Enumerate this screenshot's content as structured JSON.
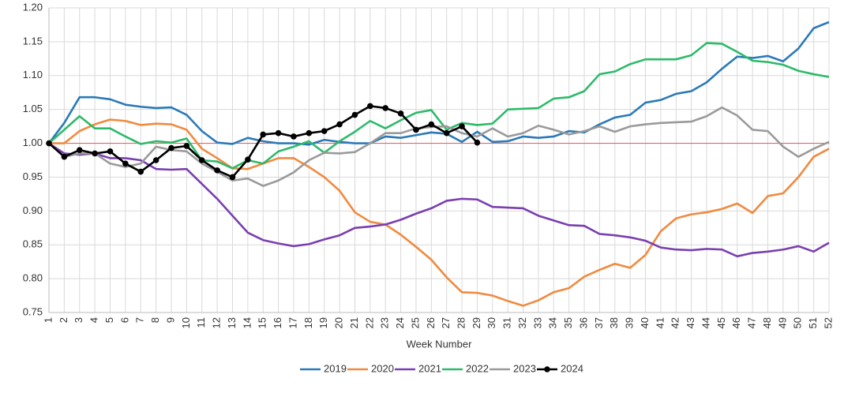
{
  "chart_data": {
    "type": "line",
    "x_label": "Week Number",
    "categories": [
      "1",
      "2",
      "3",
      "4",
      "5",
      "6",
      "7",
      "8",
      "9",
      "10",
      "11",
      "12",
      "13",
      "14",
      "15",
      "16",
      "17",
      "18",
      "19",
      "20",
      "21",
      "22",
      "23",
      "24",
      "25",
      "26",
      "27",
      "28",
      "29",
      "30",
      "31",
      "32",
      "33",
      "34",
      "35",
      "36",
      "37",
      "38",
      "39",
      "40",
      "41",
      "42",
      "43",
      "44",
      "45",
      "46",
      "47",
      "48",
      "49",
      "50",
      "51",
      "52"
    ],
    "ylim": [
      0.75,
      1.2
    ],
    "yticks": [
      {
        "value": 0.75,
        "label": "0.75"
      },
      {
        "value": 0.8,
        "label": "0.80"
      },
      {
        "value": 0.85,
        "label": "0.85"
      },
      {
        "value": 0.9,
        "label": "0.90"
      },
      {
        "value": 0.95,
        "label": "0.95"
      },
      {
        "value": 1.0,
        "label": "1.00"
      },
      {
        "value": 1.05,
        "label": "1.05"
      },
      {
        "value": 1.1,
        "label": "1.10"
      },
      {
        "value": 1.15,
        "label": "1.15"
      },
      {
        "value": 1.2,
        "label": "1.20"
      }
    ],
    "grid": true,
    "reference_line": {
      "value": 1.0,
      "color": "#e06666"
    },
    "legend": "bottom",
    "series": [
      {
        "name": "2019",
        "color": "#2a7ab8",
        "values": [
          1.0,
          1.03,
          1.068,
          1.068,
          1.065,
          1.057,
          1.054,
          1.052,
          1.053,
          1.042,
          1.018,
          1.001,
          0.999,
          1.008,
          1.003,
          1.0,
          1.0,
          0.998,
          1.005,
          1.002,
          1.0,
          1.0,
          1.01,
          1.008,
          1.012,
          1.016,
          1.014,
          1.002,
          1.017,
          1.002,
          1.003,
          1.01,
          1.008,
          1.01,
          1.018,
          1.016,
          1.028,
          1.038,
          1.042,
          1.06,
          1.064,
          1.073,
          1.077,
          1.09,
          1.11,
          1.128,
          1.126,
          1.129,
          1.121,
          1.14,
          1.17,
          1.179
        ]
      },
      {
        "name": "2020",
        "color": "#f08a3e",
        "values": [
          1.0,
          1.0,
          1.018,
          1.028,
          1.035,
          1.033,
          1.027,
          1.029,
          1.028,
          1.02,
          0.992,
          0.978,
          0.963,
          0.962,
          0.97,
          0.978,
          0.978,
          0.965,
          0.95,
          0.93,
          0.898,
          0.884,
          0.88,
          0.865,
          0.847,
          0.828,
          0.802,
          0.78,
          0.779,
          0.775,
          0.767,
          0.76,
          0.768,
          0.78,
          0.786,
          0.803,
          0.813,
          0.822,
          0.816,
          0.835,
          0.87,
          0.889,
          0.895,
          0.898,
          0.903,
          0.911,
          0.897,
          0.922,
          0.926,
          0.95,
          0.98,
          0.992
        ]
      },
      {
        "name": "2021",
        "color": "#7a3fb0",
        "values": [
          1.0,
          0.985,
          0.983,
          0.985,
          0.978,
          0.978,
          0.975,
          0.962,
          0.961,
          0.962,
          0.94,
          0.918,
          0.893,
          0.868,
          0.857,
          0.852,
          0.848,
          0.851,
          0.858,
          0.864,
          0.875,
          0.877,
          0.88,
          0.887,
          0.896,
          0.904,
          0.915,
          0.918,
          0.917,
          0.906,
          0.905,
          0.904,
          0.893,
          0.886,
          0.879,
          0.878,
          0.866,
          0.864,
          0.861,
          0.856,
          0.846,
          0.843,
          0.842,
          0.844,
          0.843,
          0.833,
          0.838,
          0.84,
          0.843,
          0.848,
          0.84,
          0.853
        ]
      },
      {
        "name": "2022",
        "color": "#2dba6a",
        "values": [
          1.0,
          1.02,
          1.04,
          1.022,
          1.022,
          1.01,
          0.999,
          1.003,
          1.001,
          1.007,
          0.975,
          0.973,
          0.963,
          0.975,
          0.97,
          0.988,
          0.995,
          1.003,
          0.986,
          1.003,
          1.017,
          1.033,
          1.022,
          1.034,
          1.045,
          1.049,
          1.02,
          1.03,
          1.027,
          1.029,
          1.05,
          1.051,
          1.052,
          1.066,
          1.068,
          1.077,
          1.102,
          1.106,
          1.117,
          1.124,
          1.124,
          1.124,
          1.13,
          1.148,
          1.147,
          1.135,
          1.122,
          1.12,
          1.116,
          1.107,
          1.102,
          1.098
        ]
      },
      {
        "name": "2023",
        "color": "#9a9a9a",
        "values": [
          1.0,
          0.98,
          0.985,
          0.985,
          0.97,
          0.965,
          0.97,
          0.995,
          0.99,
          0.988,
          0.97,
          0.958,
          0.945,
          0.948,
          0.937,
          0.945,
          0.957,
          0.975,
          0.986,
          0.985,
          0.987,
          1.0,
          1.015,
          1.015,
          1.022,
          1.024,
          1.025,
          1.015,
          1.01,
          1.022,
          1.01,
          1.015,
          1.026,
          1.02,
          1.013,
          1.018,
          1.025,
          1.017,
          1.025,
          1.028,
          1.03,
          1.031,
          1.032,
          1.04,
          1.053,
          1.041,
          1.02,
          1.018,
          0.995,
          0.98,
          0.992,
          1.002
        ]
      },
      {
        "name": "2024",
        "color": "#000000",
        "marker": "circle",
        "values": [
          1.0,
          0.98,
          0.99,
          0.985,
          0.988,
          0.97,
          0.958,
          0.975,
          0.993,
          0.996,
          0.975,
          0.96,
          0.95,
          0.976,
          1.013,
          1.015,
          1.01,
          1.015,
          1.018,
          1.028,
          1.042,
          1.055,
          1.052,
          1.044,
          1.02,
          1.028,
          1.015,
          1.025,
          1.001,
          null,
          null,
          null,
          null,
          null,
          null,
          null,
          null,
          null,
          null,
          null,
          null,
          null,
          null,
          null,
          null,
          null,
          null,
          null,
          null,
          null,
          null,
          null
        ]
      }
    ]
  }
}
